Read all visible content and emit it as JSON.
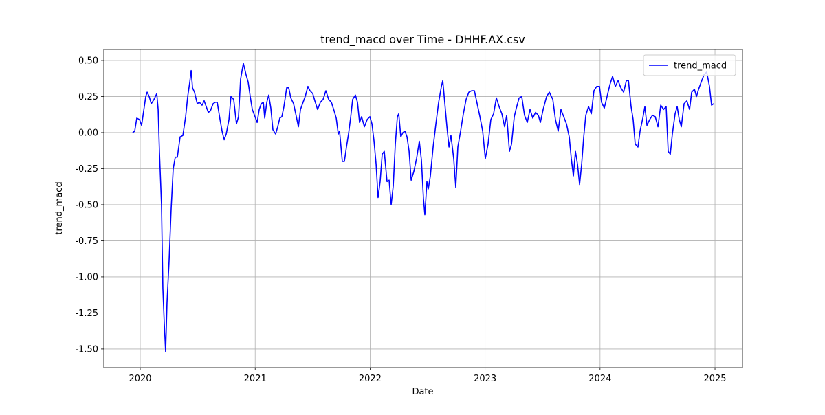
{
  "chart_data": {
    "type": "line",
    "title": "trend_macd over Time - DHHF.AX.csv",
    "xlabel": "Date",
    "ylabel": "trend_macd",
    "xlim": [
      2019.683,
      2025.239
    ],
    "ylim": [
      -1.629,
      0.576
    ],
    "xticks": [
      2020,
      2021,
      2022,
      2023,
      2024,
      2025
    ],
    "yticks": [
      {
        "value": 0.5,
        "label": "0.50"
      },
      {
        "value": 0.25,
        "label": "0.25"
      },
      {
        "value": 0,
        "label": "0.00"
      },
      {
        "value": -0.25,
        "label": "-0.25"
      },
      {
        "value": -0.5,
        "label": "-0.50"
      },
      {
        "value": -0.75,
        "label": "-0.75"
      },
      {
        "value": -1,
        "label": "-1.00"
      },
      {
        "value": -1.25,
        "label": "-1.25"
      },
      {
        "value": -1.5,
        "label": "-1.50"
      }
    ],
    "grid": true,
    "legend": "upper right",
    "x": [
      2019.934,
      2019.952,
      2019.97,
      2019.994,
      2020.012,
      2020.03,
      2020.048,
      2020.06,
      2020.078,
      2020.096,
      2020.12,
      2020.144,
      2020.156,
      2020.167,
      2020.185,
      2020.197,
      2020.209,
      2020.221,
      2020.233,
      2020.251,
      2020.269,
      2020.287,
      2020.305,
      2020.323,
      2020.347,
      2020.371,
      2020.395,
      2020.413,
      2020.431,
      2020.443,
      2020.455,
      2020.472,
      2020.496,
      2020.514,
      2020.538,
      2020.556,
      2020.574,
      2020.592,
      2020.61,
      2020.634,
      2020.652,
      2020.67,
      2020.694,
      2020.712,
      2020.73,
      2020.748,
      2020.772,
      2020.789,
      2020.813,
      2020.837,
      2020.855,
      2020.873,
      2020.897,
      2020.921,
      2020.939,
      2020.957,
      2020.975,
      2020.999,
      2021.017,
      2021.035,
      2021.053,
      2021.071,
      2021.083,
      2021.101,
      2021.118,
      2021.136,
      2021.154,
      2021.178,
      2021.196,
      2021.214,
      2021.232,
      2021.25,
      2021.274,
      2021.292,
      2021.31,
      2021.334,
      2021.358,
      2021.376,
      2021.394,
      2021.412,
      2021.435,
      2021.459,
      2021.477,
      2021.501,
      2021.519,
      2021.543,
      2021.567,
      2021.591,
      2021.615,
      2021.639,
      2021.663,
      2021.687,
      2021.705,
      2021.723,
      2021.734,
      2021.758,
      2021.776,
      2021.794,
      2021.812,
      2021.83,
      2021.848,
      2021.872,
      2021.89,
      2021.908,
      2021.926,
      2021.95,
      2021.974,
      2021.998,
      2022.016,
      2022.034,
      2022.052,
      2022.069,
      2022.087,
      2022.105,
      2022.123,
      2022.147,
      2022.165,
      2022.183,
      2022.201,
      2022.219,
      2022.237,
      2022.249,
      2022.267,
      2022.285,
      2022.303,
      2022.321,
      2022.339,
      2022.357,
      2022.38,
      2022.404,
      2022.428,
      2022.446,
      2022.464,
      2022.476,
      2022.494,
      2022.506,
      2022.524,
      2022.548,
      2022.572,
      2022.596,
      2022.62,
      2022.632,
      2022.65,
      2022.668,
      2022.686,
      2022.703,
      2022.727,
      2022.745,
      2022.763,
      2022.787,
      2022.811,
      2022.835,
      2022.859,
      2022.883,
      2022.907,
      2022.931,
      2022.955,
      2022.979,
      2023.002,
      2023.026,
      2023.05,
      2023.074,
      2023.098,
      2023.122,
      2023.146,
      2023.17,
      2023.188,
      2023.212,
      2023.23,
      2023.254,
      2023.272,
      2023.296,
      2023.319,
      2023.343,
      2023.367,
      2023.391,
      2023.415,
      2023.439,
      2023.463,
      2023.481,
      2023.505,
      2023.535,
      2023.559,
      2023.589,
      2023.612,
      2023.636,
      2023.66,
      2023.684,
      2023.708,
      2023.732,
      2023.75,
      2023.768,
      2023.786,
      2023.804,
      2023.822,
      2023.84,
      2023.858,
      2023.876,
      2023.9,
      2023.924,
      2023.947,
      2023.971,
      2023.995,
      2024.013,
      2024.037,
      2024.061,
      2024.085,
      2024.109,
      2024.133,
      2024.157,
      2024.181,
      2024.205,
      2024.229,
      2024.247,
      2024.27,
      2024.288,
      2024.306,
      2024.33,
      2024.348,
      2024.372,
      2024.39,
      2024.408,
      2024.432,
      2024.456,
      2024.48,
      2024.504,
      2024.528,
      2024.552,
      2024.575,
      2024.593,
      2024.611,
      2024.629,
      2024.653,
      2024.671,
      2024.689,
      2024.707,
      2024.731,
      2024.755,
      2024.779,
      2024.797,
      2024.821,
      2024.839,
      2024.857,
      2024.88,
      2024.904,
      2024.928,
      2024.952,
      2024.97,
      2024.988
    ],
    "series": [
      {
        "name": "trend_macd",
        "color": "#0000ff",
        "values": [
          0.0,
          0.01,
          0.1,
          0.09,
          0.05,
          0.15,
          0.25,
          0.28,
          0.25,
          0.2,
          0.23,
          0.27,
          0.16,
          -0.13,
          -0.5,
          -1.08,
          -1.32,
          -1.52,
          -1.18,
          -0.89,
          -0.53,
          -0.25,
          -0.17,
          -0.17,
          -0.03,
          -0.02,
          0.11,
          0.25,
          0.35,
          0.43,
          0.31,
          0.28,
          0.2,
          0.21,
          0.19,
          0.22,
          0.18,
          0.14,
          0.15,
          0.2,
          0.21,
          0.21,
          0.09,
          0.01,
          -0.05,
          -0.01,
          0.09,
          0.25,
          0.23,
          0.06,
          0.11,
          0.37,
          0.48,
          0.4,
          0.35,
          0.25,
          0.16,
          0.11,
          0.07,
          0.16,
          0.2,
          0.21,
          0.1,
          0.21,
          0.26,
          0.17,
          0.02,
          -0.01,
          0.04,
          0.1,
          0.11,
          0.18,
          0.31,
          0.31,
          0.24,
          0.2,
          0.11,
          0.04,
          0.16,
          0.2,
          0.25,
          0.32,
          0.29,
          0.27,
          0.22,
          0.16,
          0.21,
          0.23,
          0.29,
          0.23,
          0.21,
          0.15,
          0.1,
          -0.01,
          0.01,
          -0.2,
          -0.2,
          -0.1,
          -0.01,
          0.1,
          0.23,
          0.26,
          0.21,
          0.07,
          0.11,
          0.04,
          0.09,
          0.11,
          0.06,
          -0.06,
          -0.22,
          -0.45,
          -0.34,
          -0.15,
          -0.13,
          -0.34,
          -0.33,
          -0.5,
          -0.37,
          -0.08,
          0.11,
          0.13,
          -0.03,
          0.0,
          0.01,
          -0.03,
          -0.13,
          -0.33,
          -0.27,
          -0.18,
          -0.06,
          -0.19,
          -0.46,
          -0.57,
          -0.34,
          -0.39,
          -0.3,
          -0.1,
          0.06,
          0.21,
          0.32,
          0.36,
          0.2,
          0.04,
          -0.1,
          -0.02,
          -0.18,
          -0.38,
          -0.1,
          0.01,
          0.13,
          0.23,
          0.28,
          0.29,
          0.29,
          0.2,
          0.11,
          0.01,
          -0.18,
          -0.08,
          0.09,
          0.13,
          0.24,
          0.18,
          0.13,
          0.04,
          0.12,
          -0.13,
          -0.08,
          0.11,
          0.17,
          0.24,
          0.25,
          0.12,
          0.07,
          0.16,
          0.1,
          0.14,
          0.12,
          0.07,
          0.16,
          0.25,
          0.28,
          0.23,
          0.09,
          0.01,
          0.16,
          0.11,
          0.06,
          -0.03,
          -0.18,
          -0.3,
          -0.13,
          -0.22,
          -0.36,
          -0.22,
          -0.03,
          0.12,
          0.18,
          0.13,
          0.29,
          0.32,
          0.32,
          0.21,
          0.17,
          0.25,
          0.33,
          0.39,
          0.32,
          0.36,
          0.31,
          0.28,
          0.36,
          0.36,
          0.18,
          0.09,
          -0.08,
          -0.1,
          0.01,
          0.1,
          0.18,
          0.05,
          0.09,
          0.12,
          0.11,
          0.04,
          0.19,
          0.16,
          0.18,
          -0.13,
          -0.15,
          -0.01,
          0.13,
          0.18,
          0.09,
          0.04,
          0.2,
          0.22,
          0.16,
          0.28,
          0.3,
          0.25,
          0.3,
          0.35,
          0.4,
          0.42,
          0.32,
          0.19,
          0.2
        ]
      }
    ]
  }
}
